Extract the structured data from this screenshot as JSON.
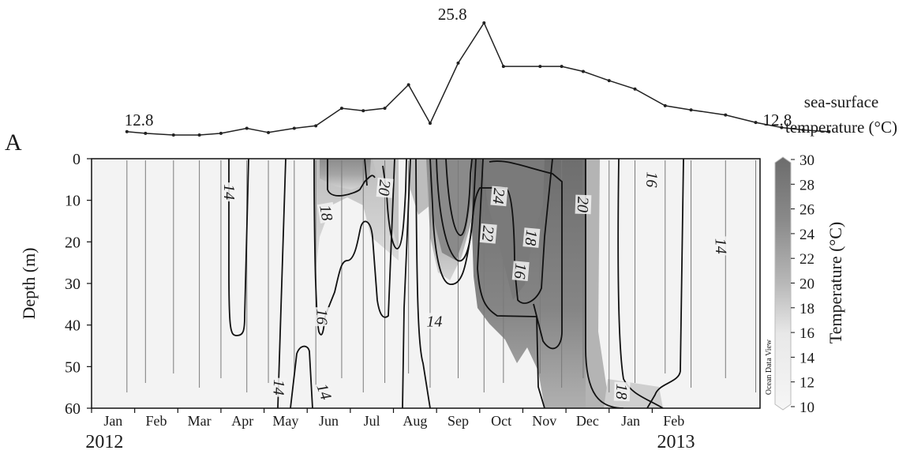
{
  "chart_data": {
    "type": "heatmap",
    "panel_label": "A",
    "sst_panel": {
      "label": "sea-surface temperature (°C)",
      "label_line1": "sea-surface",
      "label_line2": "temperature (°C)",
      "series": [
        {
          "t": 0.82,
          "v": 12.8
        },
        {
          "t": 1.25,
          "v": 12.6
        },
        {
          "t": 1.9,
          "v": 12.4
        },
        {
          "t": 2.5,
          "v": 12.4
        },
        {
          "t": 3.0,
          "v": 12.6
        },
        {
          "t": 3.6,
          "v": 13.2
        },
        {
          "t": 4.1,
          "v": 12.7
        },
        {
          "t": 4.7,
          "v": 13.2
        },
        {
          "t": 5.2,
          "v": 13.5
        },
        {
          "t": 5.8,
          "v": 15.6
        },
        {
          "t": 6.3,
          "v": 15.3
        },
        {
          "t": 6.8,
          "v": 15.6
        },
        {
          "t": 7.35,
          "v": 18.4
        },
        {
          "t": 7.85,
          "v": 13.8
        },
        {
          "t": 8.5,
          "v": 21.0
        },
        {
          "t": 9.1,
          "v": 25.8
        },
        {
          "t": 9.55,
          "v": 20.6
        },
        {
          "t": 10.4,
          "v": 20.6
        },
        {
          "t": 10.9,
          "v": 20.6
        },
        {
          "t": 11.4,
          "v": 20.0
        },
        {
          "t": 12.0,
          "v": 18.9
        },
        {
          "t": 12.6,
          "v": 17.9
        },
        {
          "t": 13.3,
          "v": 15.9
        },
        {
          "t": 13.9,
          "v": 15.4
        },
        {
          "t": 14.7,
          "v": 14.8
        },
        {
          "t": 15.4,
          "v": 13.9
        },
        {
          "t": 16.0,
          "v": 13.3
        },
        {
          "t": 16.5,
          "v": 13.0
        },
        {
          "t": 17.1,
          "v": 12.8
        }
      ],
      "annotations": [
        {
          "text": "12.8",
          "t": 1.1
        },
        {
          "text": "25.8",
          "t": 8.55
        },
        {
          "text": "12.8",
          "t": 15.9
        }
      ]
    },
    "ylabel": "Depth (m)",
    "ylim": [
      0,
      60
    ],
    "yticks": [
      "0",
      "10",
      "20",
      "30",
      "40",
      "50",
      "60"
    ],
    "xlabels": [
      "Jan",
      "Feb",
      "Mar",
      "Apr",
      "May",
      "Jun",
      "Jul",
      "Aug",
      "Sep",
      "Oct",
      "Nov",
      "Dec",
      "Jan",
      "Feb"
    ],
    "year_labels": [
      {
        "text": "2012",
        "t": 0.3
      },
      {
        "text": "2013",
        "t": 13.55
      }
    ],
    "colorbar": {
      "label": "Temperature (°C)",
      "ticks": [
        "10",
        "12",
        "14",
        "16",
        "18",
        "20",
        "22",
        "24",
        "26",
        "28",
        "30"
      ],
      "range": [
        10,
        30
      ],
      "watermark": "Ocean Data View"
    },
    "contour_labels": [
      {
        "text": "14",
        "t": 3.2,
        "depth": 8,
        "rot": 90
      },
      {
        "text": "18",
        "t": 5.45,
        "depth": 13,
        "rot": 80
      },
      {
        "text": "20",
        "t": 6.8,
        "depth": 7,
        "rot": 95
      },
      {
        "text": "22",
        "t": 9.2,
        "depth": 18,
        "rot": 95
      },
      {
        "text": "24",
        "t": 9.45,
        "depth": 9,
        "rot": 95
      },
      {
        "text": "18",
        "t": 10.2,
        "depth": 19,
        "rot": 95
      },
      {
        "text": "16",
        "t": 9.95,
        "depth": 27,
        "rot": 95
      },
      {
        "text": "20",
        "t": 11.4,
        "depth": 11,
        "rot": 92
      },
      {
        "text": "16",
        "t": 13.0,
        "depth": 5,
        "rot": 92
      },
      {
        "text": "14",
        "t": 14.6,
        "depth": 21,
        "rot": 88
      },
      {
        "text": "16",
        "t": 5.35,
        "depth": 38,
        "rot": 90
      },
      {
        "text": "14",
        "t": 7.95,
        "depth": 39,
        "rot": 0
      },
      {
        "text": "14",
        "t": 4.35,
        "depth": 55,
        "rot": 92
      },
      {
        "text": "14",
        "t": 5.4,
        "depth": 56,
        "rot": 70
      },
      {
        "text": "18",
        "t": 12.3,
        "depth": 56,
        "rot": 92
      }
    ],
    "sampling_stations": [
      0.82,
      1.25,
      1.9,
      2.5,
      3.0,
      3.6,
      4.1,
      4.7,
      5.2,
      5.8,
      6.3,
      6.8,
      7.35,
      7.85,
      8.5,
      9.1,
      9.55,
      10.4,
      10.9,
      11.4,
      12.0,
      12.6,
      13.3,
      13.9,
      14.7,
      15.4,
      16.0
    ]
  }
}
